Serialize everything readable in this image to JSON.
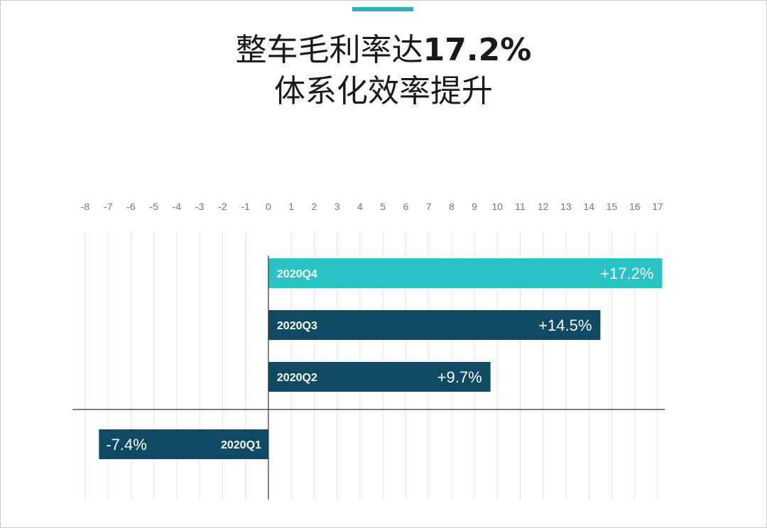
{
  "title": {
    "line1_text": "整车毛利率达",
    "line1_highlight": "17.2%",
    "line2": "体系化效率提升"
  },
  "colors": {
    "accent": "#1FB8B8",
    "bar_dark": "#0F4A63",
    "bar_highlight": "#29C3C3",
    "grid": "#DDE6EA",
    "axis": "#333333",
    "tick_text": "#777777"
  },
  "chart_data": {
    "type": "bar",
    "orientation": "horizontal",
    "categories": [
      "2020Q4",
      "2020Q3",
      "2020Q2",
      "2020Q1"
    ],
    "values": [
      17.2,
      14.5,
      9.7,
      -7.4
    ],
    "value_labels": [
      "+17.2%",
      "+14.5%",
      "+9.7%",
      "-7.4%"
    ],
    "highlight_index": 0,
    "xticks": [
      "-8",
      "-7",
      "-6",
      "-5",
      "-4",
      "-3",
      "-2",
      "-1",
      "0",
      "1",
      "2",
      "3",
      "4",
      "5",
      "6",
      "7",
      "8",
      "9",
      "10",
      "11",
      "12",
      "13",
      "14",
      "15",
      "16",
      "17"
    ],
    "xlim": [
      -8,
      17
    ],
    "grid": true,
    "xlabel": "",
    "ylabel": ""
  }
}
